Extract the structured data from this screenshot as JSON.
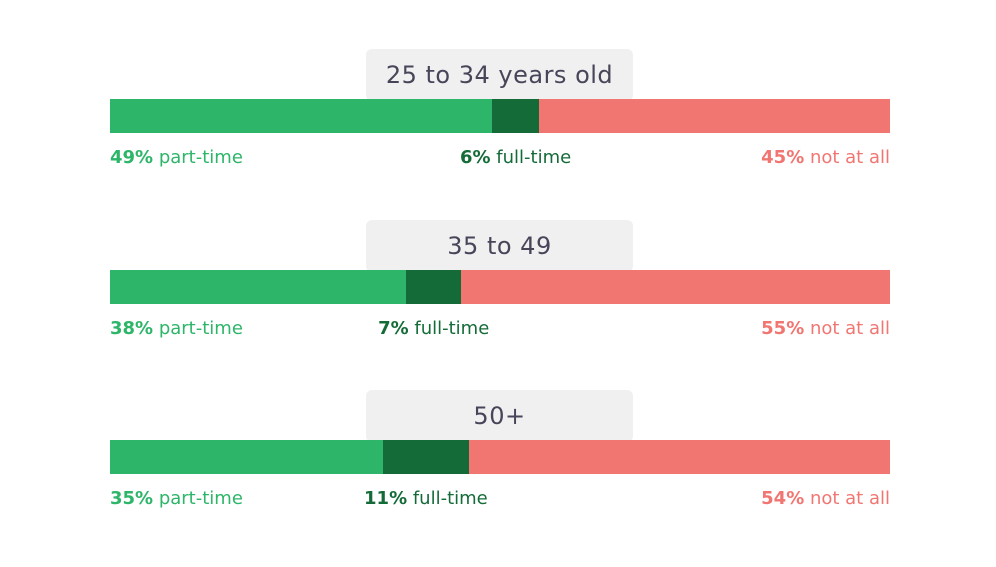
{
  "colors": {
    "part_time": "#2db569",
    "full_time": "#146b38",
    "not_at_all": "#f17672",
    "tab_bg": "#f0f0f1",
    "tab_text": "#474659"
  },
  "labels": {
    "part_time": "part-time",
    "full_time": "full-time",
    "not_at_all": "not at all"
  },
  "chart_data": {
    "type": "bar",
    "orientation": "horizontal-stacked-100",
    "categories": [
      "25 to 34 years old",
      "35 to 49",
      "50+"
    ],
    "series": [
      {
        "name": "part-time",
        "values": [
          49,
          38,
          35
        ]
      },
      {
        "name": "full-time",
        "values": [
          6,
          7,
          11
        ]
      },
      {
        "name": "not at all",
        "values": [
          45,
          55,
          54
        ]
      }
    ],
    "value_labels": {
      "part_time": [
        "49%",
        "38%",
        "35%"
      ],
      "full_time": [
        "6%",
        "7%",
        "11%"
      ],
      "not_at_all": [
        "45%",
        "55%",
        "54%"
      ]
    },
    "title": "",
    "xlabel": "",
    "ylabel": "",
    "xlim": [
      0,
      100
    ],
    "grid": false,
    "legend": "none"
  }
}
